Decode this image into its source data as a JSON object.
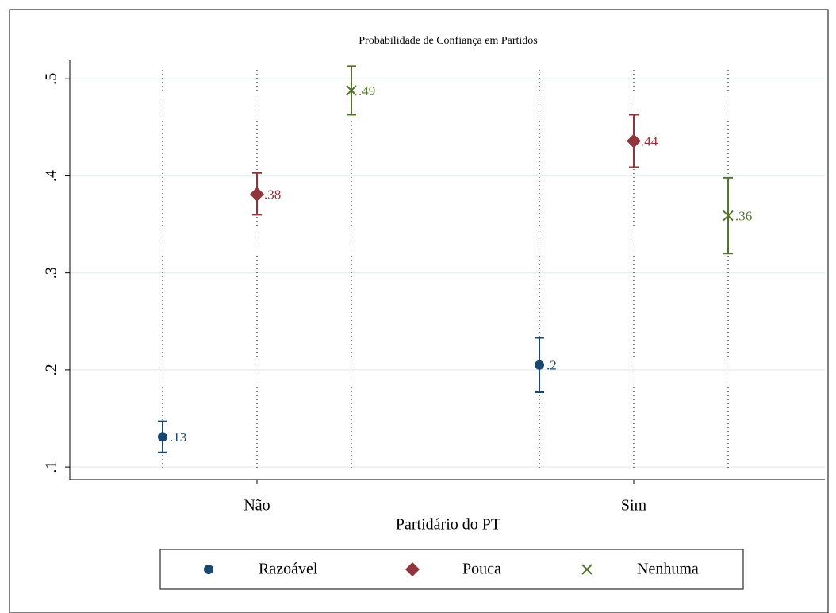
{
  "chart_data": {
    "type": "errorbar",
    "title": "Probabilidade de Confiança em Partidos",
    "x_label": "Partidário do PT",
    "categories": [
      "Não",
      "Sim"
    ],
    "series": [
      {
        "name": "Razoável",
        "color": "#1a476f",
        "marker": "circle",
        "values": [
          0.131,
          0.205
        ],
        "value_labels": [
          ".13",
          ".2"
        ],
        "ci_low": [
          0.115,
          0.177
        ],
        "ci_high": [
          0.147,
          0.233
        ]
      },
      {
        "name": "Pouca",
        "color": "#90353b",
        "marker": "diamond",
        "values": [
          0.381,
          0.436
        ],
        "value_labels": [
          ".38",
          ".44"
        ],
        "ci_low": [
          0.36,
          0.409
        ],
        "ci_high": [
          0.403,
          0.463
        ]
      },
      {
        "name": "Nenhuma",
        "color": "#55752f",
        "marker": "x",
        "values": [
          0.488,
          0.359
        ],
        "value_labels": [
          ".49",
          ".36"
        ],
        "ci_low": [
          0.463,
          0.32
        ],
        "ci_high": [
          0.513,
          0.398
        ]
      }
    ],
    "ylim": [
      0.087,
      0.519
    ],
    "yticks": [
      {
        "value": 0.1,
        "label": ".1"
      },
      {
        "value": 0.2,
        "label": ".2"
      },
      {
        "value": 0.3,
        "label": ".3"
      },
      {
        "value": 0.4,
        "label": ".4"
      },
      {
        "value": 0.5,
        "label": ".5"
      }
    ],
    "grid": true
  }
}
